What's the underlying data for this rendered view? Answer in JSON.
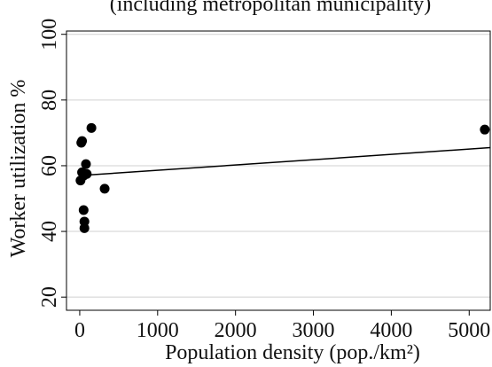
{
  "chart_data": {
    "type": "scatter",
    "title": "(including metropolitan municipality)",
    "x_label": "Population density (pop./km²)",
    "y_label": "Worker utilization %",
    "xlim": [
      -170,
      5270
    ],
    "ylim": [
      16,
      101
    ],
    "xticks": [
      0,
      1000,
      2000,
      3000,
      4000,
      5000
    ],
    "yticks": [
      20,
      40,
      60,
      80,
      100
    ],
    "grid": true,
    "series": [
      {
        "color": "#000000",
        "x": [
          20,
          30,
          150,
          30,
          10,
          80,
          90,
          50,
          320,
          50,
          60,
          60,
          5200
        ],
        "values": [
          67,
          67.5,
          71.5,
          58,
          55.5,
          60.5,
          57.5,
          57,
          53,
          46.5,
          43,
          41,
          71
        ]
      }
    ],
    "fit": {
      "color": "#000000",
      "x": [
        0,
        5270
      ],
      "values": [
        57,
        65.5
      ]
    }
  }
}
